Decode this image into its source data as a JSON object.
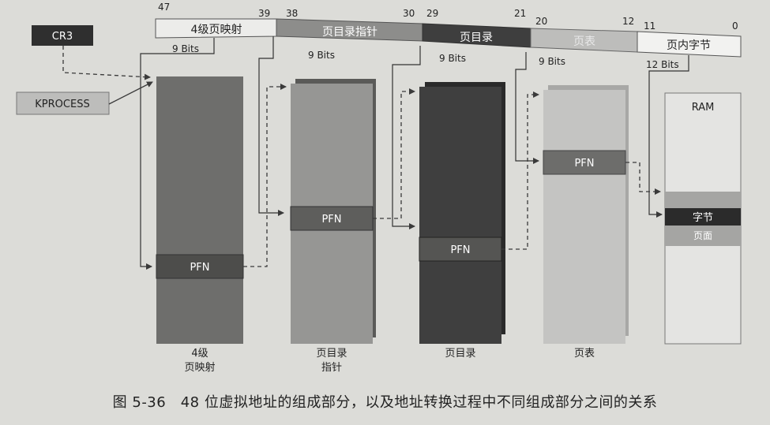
{
  "address": {
    "bit_ticks": [
      {
        "label": "47"
      },
      {
        "label": "39"
      },
      {
        "label": "38"
      },
      {
        "label": "30"
      },
      {
        "label": "29"
      },
      {
        "label": "21"
      },
      {
        "label": "20"
      },
      {
        "label": "12"
      },
      {
        "label": "11"
      },
      {
        "label": "0"
      }
    ],
    "segments": [
      {
        "label": "4级页映射",
        "bits": "9 Bits"
      },
      {
        "label": "页目录指针",
        "bits": "9 Bits"
      },
      {
        "label": "页目录",
        "bits": "9 Bits"
      },
      {
        "label": "页表",
        "bits": "9 Bits"
      },
      {
        "label": "页内字节",
        "bits": "12 Bits"
      }
    ]
  },
  "sources": {
    "cr3": "CR3",
    "kprocess": "KPROCESS"
  },
  "tables": [
    {
      "pfn": "PFN",
      "caption": [
        "4级",
        "页映射"
      ]
    },
    {
      "pfn": "PFN",
      "caption": [
        "页目录",
        "指针"
      ]
    },
    {
      "pfn": "PFN",
      "caption": [
        "页目录"
      ]
    },
    {
      "pfn": "PFN",
      "caption": [
        "页表"
      ]
    }
  ],
  "ram": {
    "title": "RAM",
    "byte_label": "字节",
    "page_label": "页面"
  },
  "figure_caption": "图 5-36　48 位虚拟地址的组成部分，以及地址转换过程中不同组成部分之间的关系"
}
